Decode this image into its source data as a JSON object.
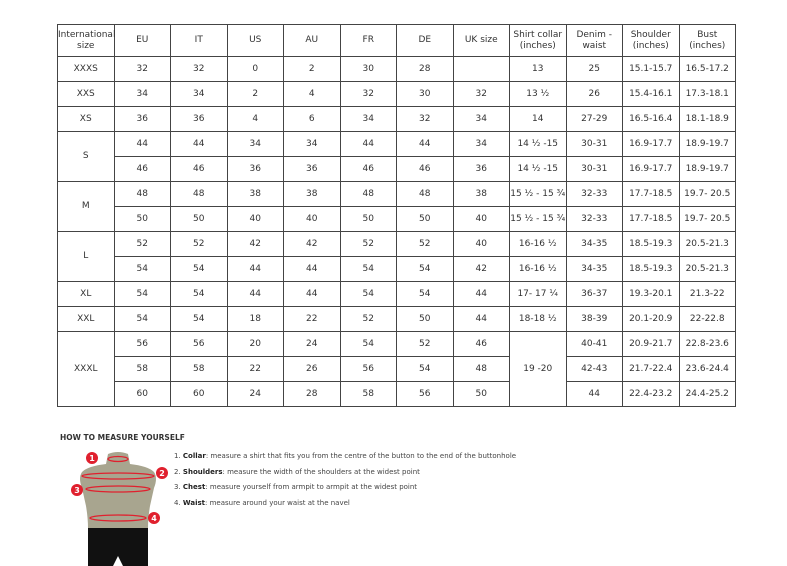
{
  "headers": [
    "International size",
    "EU",
    "IT",
    "US",
    "AU",
    "FR",
    "DE",
    "UK size",
    "Shirt collar (inches)",
    "Denim - waist",
    "Shoulder (inches)",
    "Bust (inches)"
  ],
  "groups": [
    {
      "size": "XXXS",
      "rows": [
        [
          "32",
          "32",
          "0",
          "2",
          "30",
          "28",
          "",
          "13",
          "25",
          "15.1-15.7",
          "16.5-17.2"
        ]
      ]
    },
    {
      "size": "XXS",
      "rows": [
        [
          "34",
          "34",
          "2",
          "4",
          "32",
          "30",
          "32",
          "13 ½",
          "26",
          "15.4-16.1",
          "17.3-18.1"
        ]
      ]
    },
    {
      "size": "XS",
      "rows": [
        [
          "36",
          "36",
          "4",
          "6",
          "34",
          "32",
          "34",
          "14",
          "27-29",
          "16.5-16.4",
          "18.1-18.9"
        ]
      ]
    },
    {
      "size": "S",
      "rows": [
        [
          "44",
          "44",
          "34",
          "34",
          "44",
          "44",
          "34",
          "14 ½ -15",
          "30-31",
          "16.9-17.7",
          "18.9-19.7"
        ],
        [
          "46",
          "46",
          "36",
          "36",
          "46",
          "46",
          "36",
          "14 ½ -15",
          "30-31",
          "16.9-17.7",
          "18.9-19.7"
        ]
      ]
    },
    {
      "size": "M",
      "rows": [
        [
          "48",
          "48",
          "38",
          "38",
          "48",
          "48",
          "38",
          "15 ½ - 15 ¾",
          "32-33",
          "17.7-18.5",
          "19.7- 20.5"
        ],
        [
          "50",
          "50",
          "40",
          "40",
          "50",
          "50",
          "40",
          "15 ½ - 15 ¾",
          "32-33",
          "17.7-18.5",
          "19.7- 20.5"
        ]
      ]
    },
    {
      "size": "L",
      "rows": [
        [
          "52",
          "52",
          "42",
          "42",
          "52",
          "52",
          "40",
          "16-16 ½",
          "34-35",
          "18.5-19.3",
          "20.5-21.3"
        ],
        [
          "54",
          "54",
          "44",
          "44",
          "54",
          "54",
          "42",
          "16-16 ½",
          "34-35",
          "18.5-19.3",
          "20.5-21.3"
        ]
      ]
    },
    {
      "size": "XL",
      "rows": [
        [
          "54",
          "54",
          "44",
          "44",
          "54",
          "54",
          "44",
          "17- 17 ¼",
          "36-37",
          "19.3-20.1",
          "21.3-22"
        ]
      ]
    },
    {
      "size": "XXL",
      "rows": [
        [
          "54",
          "54",
          "18",
          "22",
          "52",
          "50",
          "44",
          "18-18 ½",
          "38-39",
          "20.1-20.9",
          "22-22.8"
        ]
      ]
    },
    {
      "size": "XXXL",
      "rows": [
        [
          "56",
          "56",
          "20",
          "24",
          "54",
          "52",
          "46",
          "19 -20",
          "40-41",
          "20.9-21.7",
          "22.8-23.6"
        ],
        [
          "58",
          "58",
          "22",
          "26",
          "56",
          "54",
          "48",
          null,
          "42-43",
          "21.7-22.4",
          "23.6-24.4"
        ],
        [
          "60",
          "60",
          "24",
          "28",
          "58",
          "56",
          "50",
          null,
          "44",
          "22.4-23.2",
          "24.4-25.2"
        ]
      ]
    }
  ],
  "howto": {
    "title": "HOW TO MEASURE YOURSELF",
    "steps": [
      {
        "num": "1.",
        "term": "Collar",
        "text": ": measure a shirt that fits you from the centre of the button to the end of the buttonhole"
      },
      {
        "num": "2.",
        "term": "Shoulders",
        "text": ": measure the width of the shoulders at the widest point"
      },
      {
        "num": "3.",
        "term": "Chest",
        "text": ": measure yourself from armpit to armpit at the widest point"
      },
      {
        "num": "4.",
        "term": "Waist",
        "text": ": measure around your waist at the navel"
      }
    ],
    "markers": [
      "1",
      "2",
      "3",
      "4"
    ],
    "colors": {
      "marker": "#e0202e",
      "torso": "#a8a58f",
      "shorts": "#111111"
    }
  }
}
